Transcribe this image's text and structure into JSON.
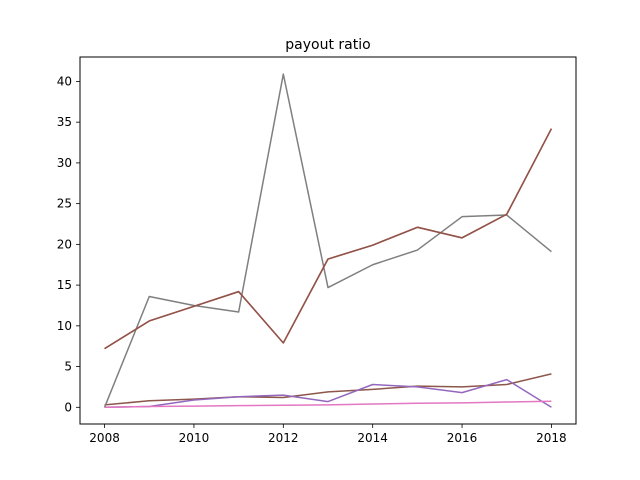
{
  "chart_data": {
    "type": "line",
    "title": "payout ratio",
    "xlabel": "",
    "ylabel": "",
    "x": [
      2008,
      2009,
      2010,
      2011,
      2012,
      2013,
      2014,
      2015,
      2016,
      2017,
      2018
    ],
    "xlim": [
      2007.45,
      2018.55
    ],
    "ylim": [
      -2.05,
      43.0
    ],
    "x_ticks": [
      2008,
      2010,
      2012,
      2014,
      2016,
      2018
    ],
    "y_ticks": [
      0,
      5,
      10,
      15,
      20,
      25,
      30,
      35,
      40
    ],
    "grid": false,
    "legend": "none",
    "series": [
      {
        "color": "#8c564b",
        "values": [
          0.3,
          0.8,
          1.0,
          1.3,
          1.2,
          1.9,
          2.2,
          2.6,
          2.5,
          2.8,
          4.1
        ]
      },
      {
        "color": "#9467bd",
        "values": [
          0.0,
          0.1,
          0.9,
          1.3,
          1.5,
          0.7,
          2.8,
          2.5,
          1.8,
          3.4,
          0.0
        ]
      },
      {
        "color": "#e377c2",
        "values": [
          0.0,
          0.1,
          0.15,
          0.2,
          0.25,
          0.3,
          0.4,
          0.5,
          0.55,
          0.65,
          0.75
        ]
      },
      {
        "color": "#7f7f7f",
        "values": [
          0.0,
          13.6,
          12.5,
          11.7,
          40.9,
          14.7,
          17.5,
          19.3,
          23.4,
          23.6,
          19.1
        ]
      },
      {
        "color": "#d62728",
        "values": [
          7.2,
          10.6,
          12.4,
          14.2,
          7.9,
          18.2,
          19.9,
          22.1,
          20.8,
          23.7,
          34.2
        ]
      },
      {
        "color": "#8c564b",
        "values": [
          7.2,
          10.6,
          12.4,
          14.2,
          7.9,
          18.2,
          19.9,
          22.1,
          20.8,
          23.7,
          34.2
        ]
      }
    ]
  }
}
